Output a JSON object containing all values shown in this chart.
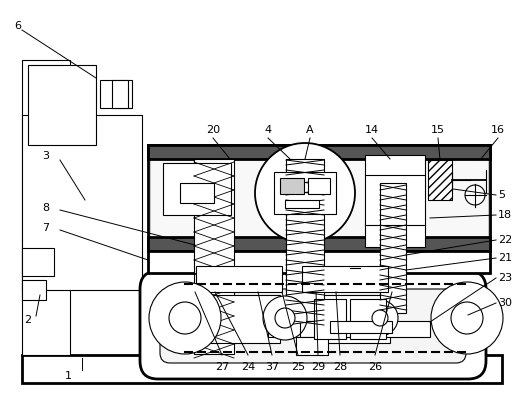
{
  "bg_color": "#ffffff",
  "line_color": "#000000",
  "fig_w": 5.27,
  "fig_h": 4.15,
  "dpi": 100
}
